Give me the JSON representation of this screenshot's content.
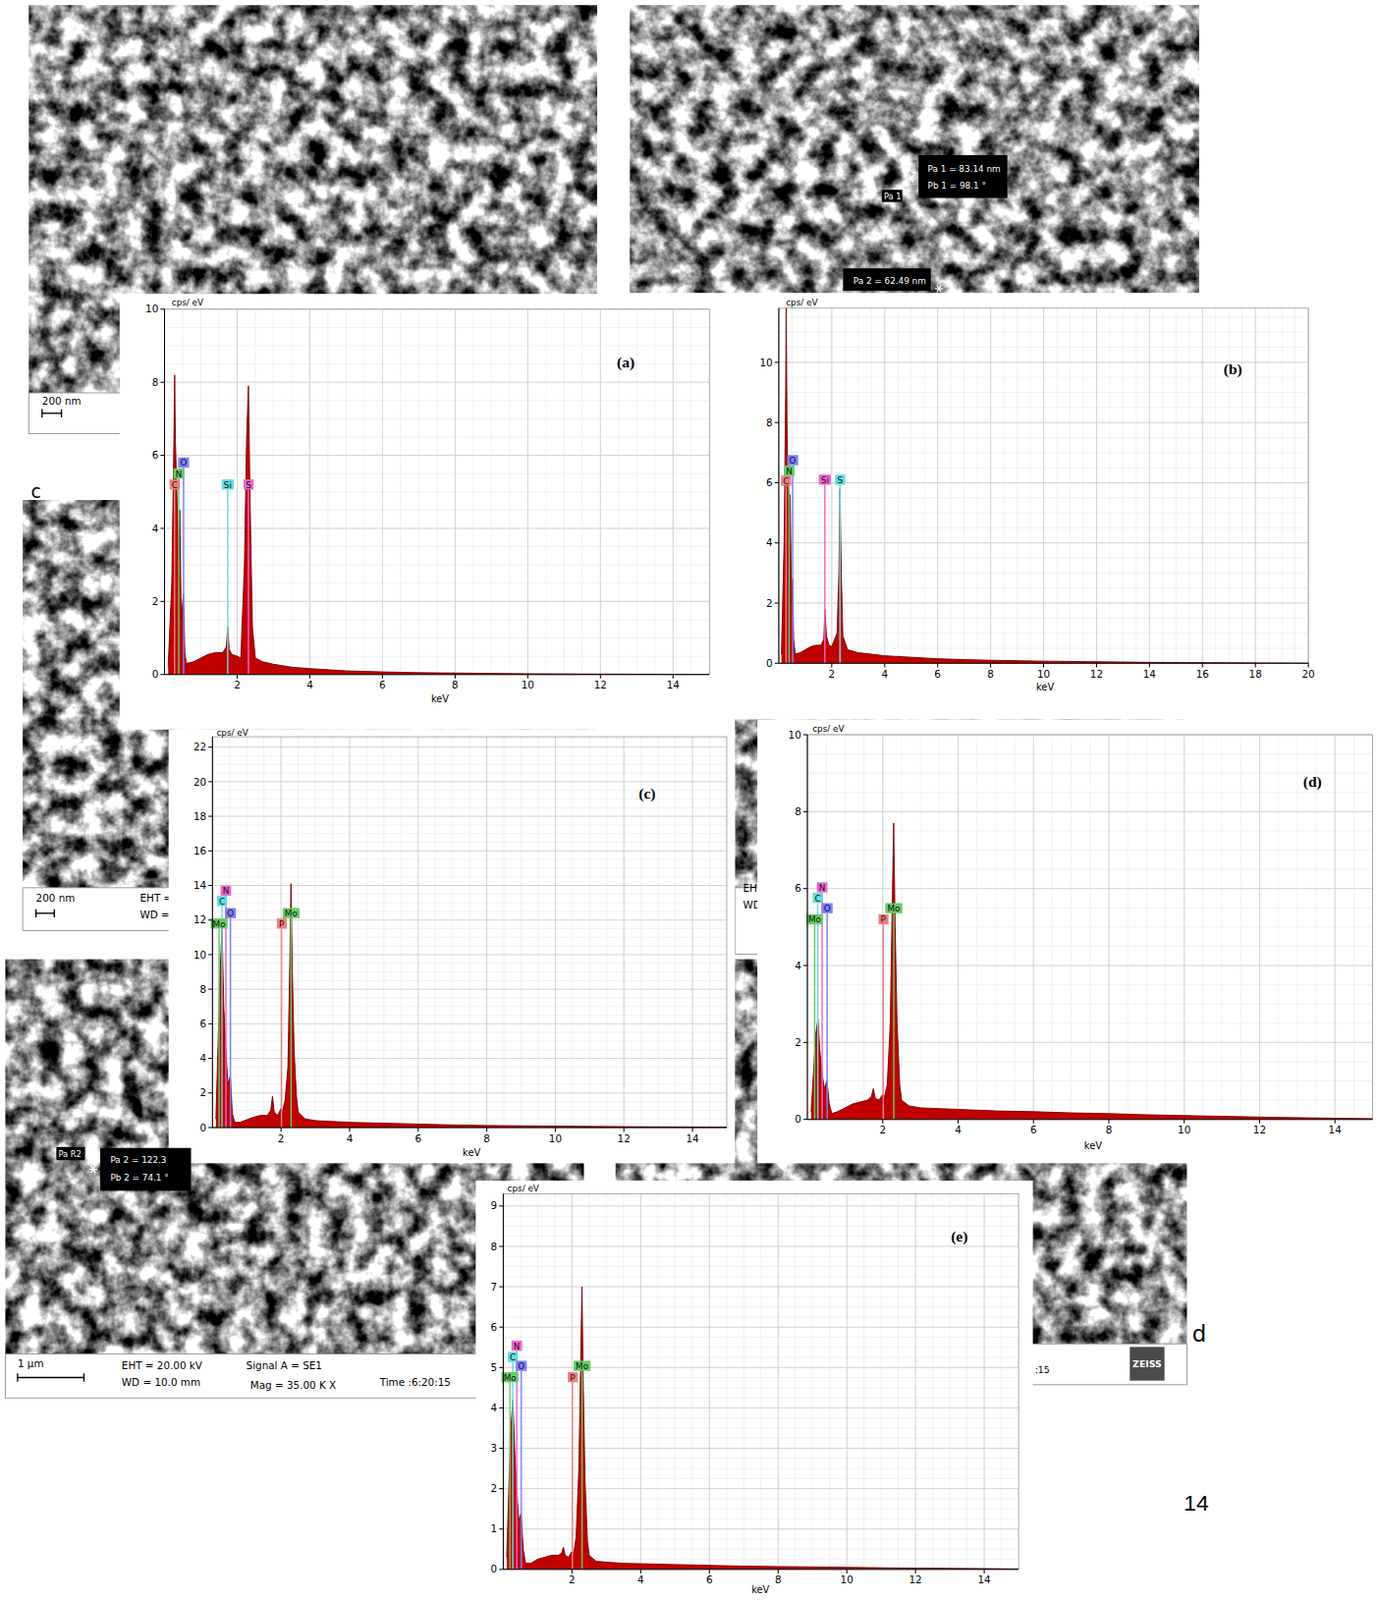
{
  "sem_images": [
    {
      "texts": [
        "200 nm"
      ]
    },
    {
      "texts": [
        "Pa 1 = 83.14 nm",
        "Pb 1 = 98.1 °",
        "Pa 1",
        "Pa 2 = 62.49 nm"
      ]
    },
    {
      "texts": [
        "c",
        "200 nm",
        "EHT =",
        "WD ="
      ]
    },
    {
      "texts": [
        "EH",
        "WD"
      ]
    },
    {
      "texts": [
        "Pa R2",
        "Pa 2 = 122.3",
        "Pb 2 = 74.1 °",
        "1 µm",
        "EHT = 20.00 kV",
        "WD = 10.0 mm",
        "Signal A = SE1",
        "Mag =  35.00 K X",
        "Time :6:20:15"
      ]
    },
    {
      "texts": [
        "d",
        ":15",
        "ZEISS"
      ]
    }
  ],
  "page_number": "14",
  "chart_data": [
    {
      "type": "area",
      "title": "(a)",
      "x_label": "keV",
      "y_label": "cps/ eV",
      "color": "#c00000",
      "grid": true,
      "xlim": [
        0,
        15
      ],
      "xticks": [
        2,
        4,
        6,
        8,
        10,
        12,
        14
      ],
      "ylim": [
        0,
        10
      ],
      "yticks": [
        0,
        2,
        4,
        6,
        8,
        10
      ],
      "x": [
        0.1,
        0.2,
        0.26,
        0.28,
        0.3,
        0.34,
        0.39,
        0.42,
        0.46,
        0.52,
        0.56,
        0.6,
        0.8,
        1.0,
        1.2,
        1.4,
        1.6,
        1.7,
        1.74,
        1.78,
        1.85,
        2.0,
        2.1,
        2.2,
        2.26,
        2.31,
        2.36,
        2.42,
        2.5,
        2.7,
        3.0,
        3.5,
        4,
        5,
        6,
        7,
        8,
        9,
        10,
        12,
        14,
        15
      ],
      "values": [
        0.2,
        2.5,
        6.5,
        8.2,
        6.4,
        5.0,
        3.2,
        4.5,
        1.5,
        2.2,
        0.6,
        0.3,
        0.35,
        0.45,
        0.55,
        0.6,
        0.6,
        0.75,
        1.3,
        0.7,
        0.55,
        0.5,
        0.45,
        3.0,
        6.5,
        7.9,
        4.5,
        1.3,
        0.45,
        0.35,
        0.28,
        0.2,
        0.16,
        0.1,
        0.07,
        0.05,
        0.04,
        0.03,
        0.02,
        0.01,
        0.005,
        0
      ],
      "elements": [
        {
          "label": "C",
          "energy": 0.277,
          "y": 5.2,
          "color": "#f08080"
        },
        {
          "label": "N",
          "energy": 0.392,
          "y": 5.5,
          "color": "#66cc66"
        },
        {
          "label": "O",
          "energy": 0.525,
          "y": 5.8,
          "color": "#8080ff"
        },
        {
          "label": "Si",
          "energy": 1.74,
          "y": 5.2,
          "color": "#66dddd"
        },
        {
          "label": "S",
          "energy": 2.31,
          "y": 5.2,
          "color": "#ee66cc"
        }
      ]
    },
    {
      "type": "area",
      "title": "(b)",
      "x_label": "keV",
      "y_label": "cps/ eV",
      "color": "#c00000",
      "grid": true,
      "xlim": [
        0,
        20
      ],
      "xticks": [
        2,
        4,
        6,
        8,
        10,
        12,
        14,
        16,
        18,
        20
      ],
      "ylim": [
        0,
        11.8
      ],
      "yticks": [
        0,
        2,
        4,
        6,
        8,
        10
      ],
      "x": [
        0.1,
        0.2,
        0.26,
        0.28,
        0.31,
        0.35,
        0.39,
        0.43,
        0.48,
        0.52,
        0.56,
        0.62,
        0.8,
        1.0,
        1.2,
        1.4,
        1.6,
        1.7,
        1.74,
        1.8,
        1.9,
        2.0,
        2.2,
        2.27,
        2.31,
        2.36,
        2.42,
        2.6,
        3,
        3.5,
        4,
        5,
        6,
        7,
        8,
        10,
        12,
        14,
        16,
        18,
        20
      ],
      "values": [
        0.3,
        4,
        9,
        11.8,
        8,
        5.5,
        4.0,
        5.6,
        2,
        2.8,
        0.8,
        0.3,
        0.35,
        0.45,
        0.55,
        0.6,
        0.6,
        0.8,
        1.8,
        0.9,
        0.6,
        0.55,
        1.0,
        3.0,
        5.8,
        3.0,
        0.9,
        0.45,
        0.35,
        0.3,
        0.25,
        0.2,
        0.15,
        0.12,
        0.1,
        0.07,
        0.05,
        0.03,
        0.02,
        0.01,
        0
      ],
      "elements": [
        {
          "label": "C",
          "energy": 0.277,
          "y": 6.07,
          "color": "#f08080"
        },
        {
          "label": "N",
          "energy": 0.392,
          "y": 6.4,
          "color": "#66cc66"
        },
        {
          "label": "O",
          "energy": 0.525,
          "y": 6.75,
          "color": "#8080ff"
        },
        {
          "label": "Si",
          "energy": 1.74,
          "y": 6.1,
          "color": "#ee66cc"
        },
        {
          "label": "S",
          "energy": 2.31,
          "y": 6.1,
          "color": "#66dddd"
        }
      ]
    },
    {
      "type": "area",
      "title": "(c)",
      "x_label": "keV",
      "y_label": "cps/ eV",
      "color": "#c00000",
      "grid": true,
      "xlim": [
        0,
        15
      ],
      "xticks": [
        2,
        4,
        6,
        8,
        10,
        12,
        14
      ],
      "ylim": [
        0,
        22.6
      ],
      "yticks": [
        0,
        2,
        4,
        6,
        8,
        10,
        12,
        14,
        16,
        18,
        20,
        22
      ],
      "x": [
        0.1,
        0.18,
        0.22,
        0.28,
        0.33,
        0.39,
        0.45,
        0.52,
        0.58,
        0.65,
        0.8,
        1.0,
        1.2,
        1.4,
        1.6,
        1.7,
        1.75,
        1.8,
        1.9,
        2.0,
        2.05,
        2.12,
        2.2,
        2.26,
        2.29,
        2.33,
        2.38,
        2.45,
        2.5,
        2.7,
        3,
        3.5,
        4,
        5,
        6,
        7,
        8,
        9,
        10,
        12,
        14,
        15
      ],
      "values": [
        0.5,
        6,
        9,
        11.5,
        7,
        4.5,
        2.5,
        3,
        0.8,
        0.3,
        0.3,
        0.45,
        0.6,
        0.7,
        0.7,
        1.0,
        1.8,
        0.9,
        0.7,
        1.1,
        1.0,
        1.6,
        3.5,
        10,
        14.1,
        9,
        4.5,
        1.8,
        0.9,
        0.5,
        0.4,
        0.35,
        0.3,
        0.25,
        0.2,
        0.15,
        0.12,
        0.1,
        0.08,
        0.05,
        0.03,
        0.02
      ],
      "elements": [
        {
          "label": "Mo",
          "energy": 0.193,
          "y": 11.8,
          "color": "#66cc66"
        },
        {
          "label": "C",
          "energy": 0.277,
          "y": 13.1,
          "color": "#66dddd"
        },
        {
          "label": "N",
          "energy": 0.392,
          "y": 13.7,
          "color": "#ee66cc"
        },
        {
          "label": "O",
          "energy": 0.525,
          "y": 12.4,
          "color": "#8080ff"
        },
        {
          "label": "P",
          "energy": 2.013,
          "y": 11.8,
          "color": "#f08080"
        },
        {
          "label": "Mo",
          "energy": 2.293,
          "y": 12.4,
          "color": "#66cc66"
        }
      ]
    },
    {
      "type": "area",
      "title": "(d)",
      "x_label": "keV",
      "y_label": "cps/ eV",
      "color": "#c00000",
      "grid": true,
      "xlim": [
        0,
        15
      ],
      "xticks": [
        2,
        4,
        6,
        8,
        10,
        12,
        14
      ],
      "ylim": [
        0,
        10
      ],
      "yticks": [
        0,
        2,
        4,
        6,
        8,
        10
      ],
      "x": [
        0.1,
        0.18,
        0.22,
        0.28,
        0.33,
        0.39,
        0.45,
        0.52,
        0.58,
        0.65,
        0.8,
        1.0,
        1.2,
        1.4,
        1.6,
        1.7,
        1.75,
        1.8,
        1.9,
        2.0,
        2.05,
        2.12,
        2.2,
        2.26,
        2.29,
        2.33,
        2.38,
        2.45,
        2.5,
        2.7,
        3,
        3.5,
        4,
        5,
        6,
        7,
        8,
        9,
        10,
        12,
        14,
        15
      ],
      "values": [
        0.2,
        1.5,
        2.2,
        2.6,
        1.8,
        1.2,
        0.8,
        1.0,
        0.4,
        0.15,
        0.2,
        0.3,
        0.4,
        0.45,
        0.5,
        0.6,
        0.8,
        0.55,
        0.5,
        0.65,
        0.6,
        0.9,
        2.5,
        6,
        7.7,
        5,
        2.5,
        0.9,
        0.5,
        0.35,
        0.3,
        0.28,
        0.26,
        0.22,
        0.2,
        0.17,
        0.15,
        0.12,
        0.1,
        0.06,
        0.03,
        0.02
      ],
      "elements": [
        {
          "label": "Mo",
          "energy": 0.193,
          "y": 5.2,
          "color": "#66cc66"
        },
        {
          "label": "C",
          "energy": 0.277,
          "y": 5.76,
          "color": "#66dddd"
        },
        {
          "label": "N",
          "energy": 0.392,
          "y": 6.03,
          "color": "#ee66cc"
        },
        {
          "label": "O",
          "energy": 0.525,
          "y": 5.49,
          "color": "#8080ff"
        },
        {
          "label": "P",
          "energy": 2.013,
          "y": 5.2,
          "color": "#f08080"
        },
        {
          "label": "Mo",
          "energy": 2.293,
          "y": 5.49,
          "color": "#66cc66"
        }
      ]
    },
    {
      "type": "area",
      "title": "(e)",
      "x_label": "keV",
      "y_label": "cps/ eV",
      "color": "#c00000",
      "grid": true,
      "xlim": [
        0,
        15
      ],
      "xticks": [
        2,
        4,
        6,
        8,
        10,
        12,
        14
      ],
      "ylim": [
        0,
        9.3
      ],
      "yticks": [
        0,
        1,
        2,
        3,
        4,
        5,
        6,
        7,
        8,
        9
      ],
      "x": [
        0.1,
        0.18,
        0.22,
        0.28,
        0.33,
        0.39,
        0.45,
        0.52,
        0.58,
        0.65,
        0.8,
        1.0,
        1.2,
        1.4,
        1.6,
        1.7,
        1.75,
        1.8,
        1.9,
        2.0,
        2.05,
        2.12,
        2.2,
        2.26,
        2.29,
        2.33,
        2.38,
        2.45,
        2.5,
        2.7,
        3,
        3.5,
        4,
        5,
        6,
        7,
        8,
        9,
        10,
        12,
        14,
        15
      ],
      "values": [
        0.3,
        2.5,
        3.5,
        4.2,
        3,
        2,
        1.2,
        1.4,
        0.5,
        0.15,
        0.15,
        0.25,
        0.3,
        0.35,
        0.35,
        0.4,
        0.55,
        0.35,
        0.3,
        0.45,
        0.4,
        0.8,
        2.5,
        5.5,
        7.0,
        4.5,
        2.2,
        0.7,
        0.35,
        0.2,
        0.18,
        0.15,
        0.14,
        0.12,
        0.1,
        0.08,
        0.07,
        0.06,
        0.05,
        0.03,
        0.02,
        0.01
      ],
      "elements": [
        {
          "label": "Mo",
          "energy": 0.193,
          "y": 4.76,
          "color": "#66cc66"
        },
        {
          "label": "C",
          "energy": 0.277,
          "y": 5.26,
          "color": "#66dddd"
        },
        {
          "label": "N",
          "energy": 0.392,
          "y": 5.54,
          "color": "#ee66cc"
        },
        {
          "label": "O",
          "energy": 0.525,
          "y": 5.04,
          "color": "#8080ff"
        },
        {
          "label": "P",
          "energy": 2.013,
          "y": 4.76,
          "color": "#f08080"
        },
        {
          "label": "Mo",
          "energy": 2.293,
          "y": 5.04,
          "color": "#66cc66"
        }
      ]
    }
  ]
}
